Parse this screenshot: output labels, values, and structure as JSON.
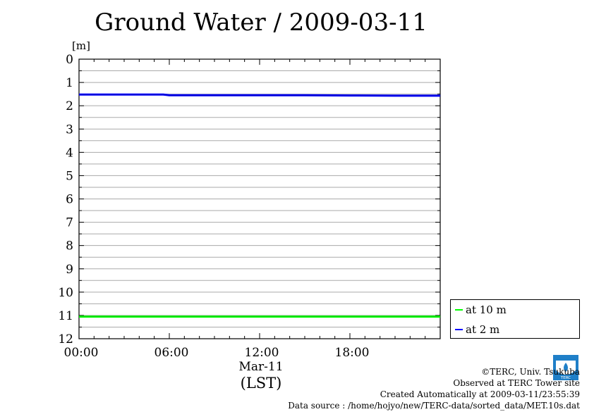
{
  "title": "Ground Water / 2009-03-11",
  "unit_label": "[m]",
  "x_date_label": "Mar-11",
  "x_tz_label": "(LST)",
  "credits": {
    "copyright": "©TERC, Univ. Tsukuba",
    "observed": "Observed at TERC Tower site",
    "created": "Created Automatically at 2009-03-11/23:55:39",
    "source": "Data source : /home/hojyo/new/TERC-data/sorted_data/MET.10s.dat"
  },
  "logo_text": "TERC",
  "colors": {
    "at_10m": "#00ff00",
    "at_2m": "#0000ff",
    "grid": "#aaaaaa"
  },
  "chart_data": {
    "type": "line",
    "title": "Ground Water / 2009-03-11",
    "ylabel": "[m]",
    "xlabel": "Mar-11 (LST)",
    "ylim": [
      0,
      12
    ],
    "y_inverted": true,
    "xlim": [
      0,
      24
    ],
    "x_ticks": [
      0,
      6,
      12,
      18
    ],
    "x_tick_labels": [
      "00:00",
      "06:00",
      "12:00",
      "18:00"
    ],
    "y_ticks": [
      0,
      1,
      2,
      3,
      4,
      5,
      6,
      7,
      8,
      9,
      10,
      11,
      12
    ],
    "grid": true,
    "legend_position": "bottom-right outside",
    "series": [
      {
        "name": "at 10 m",
        "color": "#00ff00",
        "x": [
          0,
          3,
          6,
          9,
          12,
          15,
          18,
          21,
          24
        ],
        "values": [
          11.05,
          11.05,
          11.05,
          11.05,
          11.05,
          11.05,
          11.05,
          11.05,
          11.05
        ]
      },
      {
        "name": "at 2 m",
        "color": "#0000ff",
        "x": [
          0,
          3,
          5.6,
          6,
          9,
          12,
          15,
          18,
          21,
          24
        ],
        "values": [
          1.52,
          1.52,
          1.52,
          1.55,
          1.55,
          1.55,
          1.55,
          1.56,
          1.57,
          1.57
        ]
      }
    ]
  }
}
